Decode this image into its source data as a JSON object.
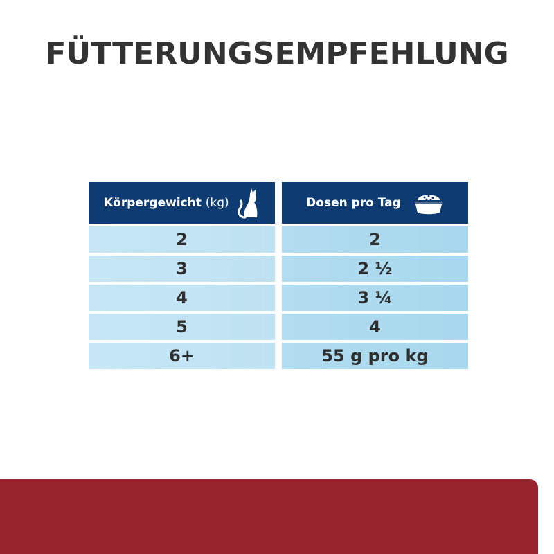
{
  "title": "FÜTTERUNGSEMPFEHLUNG",
  "table": {
    "headers": {
      "weight_label": "Körpergewicht",
      "weight_unit": "(kg)",
      "weight_icon": "cat-icon",
      "portion_label": "Dosen pro Tag",
      "portion_icon": "food-bowl-icon"
    },
    "weights": [
      "2",
      "3",
      "4",
      "5",
      "6+"
    ],
    "portions": [
      "2",
      "2 ½",
      "3 ¼",
      "4",
      "55 g pro kg"
    ]
  },
  "colors": {
    "header": "#0e3b72",
    "row_left": "#c6e6f5",
    "row_right": "#b2dcf0",
    "footer": "#97242d",
    "text": "#333333"
  }
}
